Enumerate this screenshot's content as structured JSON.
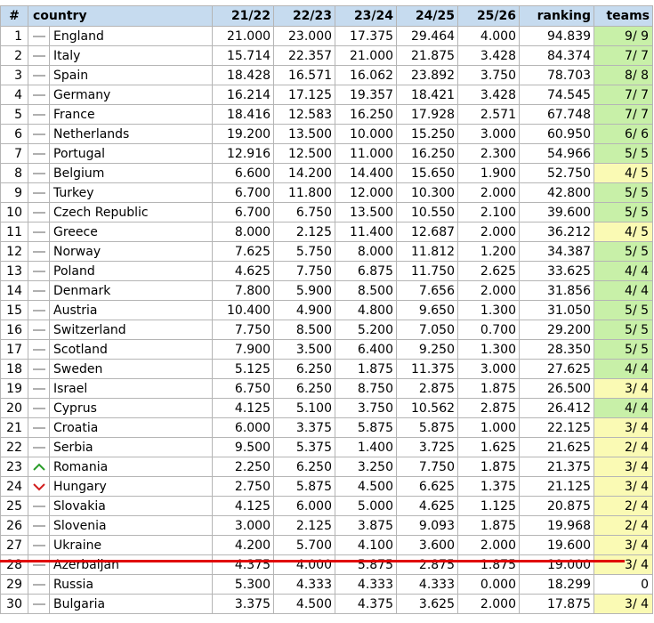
{
  "headers": [
    "#",
    "country",
    "21/22",
    "22/23",
    "23/24",
    "24/25",
    "25/26",
    "ranking",
    "teams"
  ],
  "colors": {
    "header_bg": "#c6dbef",
    "teams_green": "#c8f0a8",
    "teams_yellow": "#fafab4",
    "cutline": "#e00000",
    "trend_up": "#2a9d2a",
    "trend_down": "#d21e1e"
  },
  "rows": [
    {
      "n": "1",
      "trend": "same",
      "country": "England",
      "y1": "21.000",
      "y2": "23.000",
      "y3": "17.375",
      "y4": "29.464",
      "y5": "4.000",
      "ranking": "94.839",
      "teams": "9/ 9",
      "teams_bg": "green"
    },
    {
      "n": "2",
      "trend": "same",
      "country": "Italy",
      "y1": "15.714",
      "y2": "22.357",
      "y3": "21.000",
      "y4": "21.875",
      "y5": "3.428",
      "ranking": "84.374",
      "teams": "7/ 7",
      "teams_bg": "green"
    },
    {
      "n": "3",
      "trend": "same",
      "country": "Spain",
      "y1": "18.428",
      "y2": "16.571",
      "y3": "16.062",
      "y4": "23.892",
      "y5": "3.750",
      "ranking": "78.703",
      "teams": "8/ 8",
      "teams_bg": "green"
    },
    {
      "n": "4",
      "trend": "same",
      "country": "Germany",
      "y1": "16.214",
      "y2": "17.125",
      "y3": "19.357",
      "y4": "18.421",
      "y5": "3.428",
      "ranking": "74.545",
      "teams": "7/ 7",
      "teams_bg": "green"
    },
    {
      "n": "5",
      "trend": "same",
      "country": "France",
      "y1": "18.416",
      "y2": "12.583",
      "y3": "16.250",
      "y4": "17.928",
      "y5": "2.571",
      "ranking": "67.748",
      "teams": "7/ 7",
      "teams_bg": "green"
    },
    {
      "n": "6",
      "trend": "same",
      "country": "Netherlands",
      "y1": "19.200",
      "y2": "13.500",
      "y3": "10.000",
      "y4": "15.250",
      "y5": "3.000",
      "ranking": "60.950",
      "teams": "6/ 6",
      "teams_bg": "green"
    },
    {
      "n": "7",
      "trend": "same",
      "country": "Portugal",
      "y1": "12.916",
      "y2": "12.500",
      "y3": "11.000",
      "y4": "16.250",
      "y5": "2.300",
      "ranking": "54.966",
      "teams": "5/ 5",
      "teams_bg": "green"
    },
    {
      "n": "8",
      "trend": "same",
      "country": "Belgium",
      "y1": "6.600",
      "y2": "14.200",
      "y3": "14.400",
      "y4": "15.650",
      "y5": "1.900",
      "ranking": "52.750",
      "teams": "4/ 5",
      "teams_bg": "yellow"
    },
    {
      "n": "9",
      "trend": "same",
      "country": "Turkey",
      "y1": "6.700",
      "y2": "11.800",
      "y3": "12.000",
      "y4": "10.300",
      "y5": "2.000",
      "ranking": "42.800",
      "teams": "5/ 5",
      "teams_bg": "green"
    },
    {
      "n": "10",
      "trend": "same",
      "country": "Czech Republic",
      "y1": "6.700",
      "y2": "6.750",
      "y3": "13.500",
      "y4": "10.550",
      "y5": "2.100",
      "ranking": "39.600",
      "teams": "5/ 5",
      "teams_bg": "green"
    },
    {
      "n": "11",
      "trend": "same",
      "country": "Greece",
      "y1": "8.000",
      "y2": "2.125",
      "y3": "11.400",
      "y4": "12.687",
      "y5": "2.000",
      "ranking": "36.212",
      "teams": "4/ 5",
      "teams_bg": "yellow"
    },
    {
      "n": "12",
      "trend": "same",
      "country": "Norway",
      "y1": "7.625",
      "y2": "5.750",
      "y3": "8.000",
      "y4": "11.812",
      "y5": "1.200",
      "ranking": "34.387",
      "teams": "5/ 5",
      "teams_bg": "green"
    },
    {
      "n": "13",
      "trend": "same",
      "country": "Poland",
      "y1": "4.625",
      "y2": "7.750",
      "y3": "6.875",
      "y4": "11.750",
      "y5": "2.625",
      "ranking": "33.625",
      "teams": "4/ 4",
      "teams_bg": "green"
    },
    {
      "n": "14",
      "trend": "same",
      "country": "Denmark",
      "y1": "7.800",
      "y2": "5.900",
      "y3": "8.500",
      "y4": "7.656",
      "y5": "2.000",
      "ranking": "31.856",
      "teams": "4/ 4",
      "teams_bg": "green"
    },
    {
      "n": "15",
      "trend": "same",
      "country": "Austria",
      "y1": "10.400",
      "y2": "4.900",
      "y3": "4.800",
      "y4": "9.650",
      "y5": "1.300",
      "ranking": "31.050",
      "teams": "5/ 5",
      "teams_bg": "green"
    },
    {
      "n": "16",
      "trend": "same",
      "country": "Switzerland",
      "y1": "7.750",
      "y2": "8.500",
      "y3": "5.200",
      "y4": "7.050",
      "y5": "0.700",
      "ranking": "29.200",
      "teams": "5/ 5",
      "teams_bg": "green"
    },
    {
      "n": "17",
      "trend": "same",
      "country": "Scotland",
      "y1": "7.900",
      "y2": "3.500",
      "y3": "6.400",
      "y4": "9.250",
      "y5": "1.300",
      "ranking": "28.350",
      "teams": "5/ 5",
      "teams_bg": "green"
    },
    {
      "n": "18",
      "trend": "same",
      "country": "Sweden",
      "y1": "5.125",
      "y2": "6.250",
      "y3": "1.875",
      "y4": "11.375",
      "y5": "3.000",
      "ranking": "27.625",
      "teams": "4/ 4",
      "teams_bg": "green"
    },
    {
      "n": "19",
      "trend": "same",
      "country": "Israel",
      "y1": "6.750",
      "y2": "6.250",
      "y3": "8.750",
      "y4": "2.875",
      "y5": "1.875",
      "ranking": "26.500",
      "teams": "3/ 4",
      "teams_bg": "yellow"
    },
    {
      "n": "20",
      "trend": "same",
      "country": "Cyprus",
      "y1": "4.125",
      "y2": "5.100",
      "y3": "3.750",
      "y4": "10.562",
      "y5": "2.875",
      "ranking": "26.412",
      "teams": "4/ 4",
      "teams_bg": "green"
    },
    {
      "n": "21",
      "trend": "same",
      "country": "Croatia",
      "y1": "6.000",
      "y2": "3.375",
      "y3": "5.875",
      "y4": "5.875",
      "y5": "1.000",
      "ranking": "22.125",
      "teams": "3/ 4",
      "teams_bg": "yellow"
    },
    {
      "n": "22",
      "trend": "same",
      "country": "Serbia",
      "y1": "9.500",
      "y2": "5.375",
      "y3": "1.400",
      "y4": "3.725",
      "y5": "1.625",
      "ranking": "21.625",
      "teams": "2/ 4",
      "teams_bg": "yellow"
    },
    {
      "n": "23",
      "trend": "up",
      "country": "Romania",
      "y1": "2.250",
      "y2": "6.250",
      "y3": "3.250",
      "y4": "7.750",
      "y5": "1.875",
      "ranking": "21.375",
      "teams": "3/ 4",
      "teams_bg": "yellow"
    },
    {
      "n": "24",
      "trend": "down",
      "country": "Hungary",
      "y1": "2.750",
      "y2": "5.875",
      "y3": "4.500",
      "y4": "6.625",
      "y5": "1.375",
      "ranking": "21.125",
      "teams": "3/ 4",
      "teams_bg": "yellow"
    },
    {
      "n": "25",
      "trend": "same",
      "country": "Slovakia",
      "y1": "4.125",
      "y2": "6.000",
      "y3": "5.000",
      "y4": "4.625",
      "y5": "1.125",
      "ranking": "20.875",
      "teams": "2/ 4",
      "teams_bg": "yellow"
    },
    {
      "n": "26",
      "trend": "same",
      "country": "Slovenia",
      "y1": "3.000",
      "y2": "2.125",
      "y3": "3.875",
      "y4": "9.093",
      "y5": "1.875",
      "ranking": "19.968",
      "teams": "2/ 4",
      "teams_bg": "yellow"
    },
    {
      "n": "27",
      "trend": "same",
      "country": "Ukraine",
      "y1": "4.200",
      "y2": "5.700",
      "y3": "4.100",
      "y4": "3.600",
      "y5": "2.000",
      "ranking": "19.600",
      "teams": "3/ 4",
      "teams_bg": "yellow"
    },
    {
      "n": "28",
      "trend": "same",
      "country": "Azerbaijan",
      "y1": "4.375",
      "y2": "4.000",
      "y3": "5.875",
      "y4": "2.875",
      "y5": "1.875",
      "ranking": "19.000",
      "teams": "3/ 4",
      "teams_bg": "yellow"
    },
    {
      "n": "29",
      "trend": "same",
      "country": "Russia",
      "y1": "5.300",
      "y2": "4.333",
      "y3": "4.333",
      "y4": "4.333",
      "y5": "0.000",
      "ranking": "18.299",
      "teams": "0",
      "teams_bg": "white"
    },
    {
      "n": "30",
      "trend": "same",
      "country": "Bulgaria",
      "y1": "3.375",
      "y2": "4.500",
      "y3": "4.375",
      "y4": "3.625",
      "y5": "2.000",
      "ranking": "17.875",
      "teams": "3/ 4",
      "teams_bg": "yellow"
    }
  ]
}
